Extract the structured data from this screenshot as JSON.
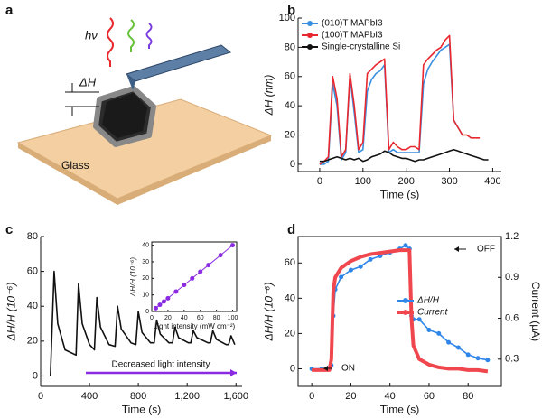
{
  "diagram": {
    "panel_label": "a",
    "labels": [
      "hν",
      "ΔH",
      "Glass"
    ]
  },
  "chart_data": [
    {
      "type": "line",
      "panel_label": "b",
      "xlabel": "Time (s)",
      "ylabel": "ΔH (nm)",
      "x": [
        0,
        10,
        20,
        30,
        40,
        50,
        60,
        70,
        80,
        90,
        100,
        110,
        120,
        130,
        140,
        150,
        160,
        170,
        180,
        190,
        200,
        210,
        220,
        230,
        240,
        250,
        260,
        270,
        280,
        290,
        300,
        310,
        320,
        330,
        340,
        350,
        360,
        370,
        380,
        390
      ],
      "series": [
        {
          "name": "(010)T MAPbI3",
          "color": "#3a8fe0",
          "values": [
            0,
            0,
            2,
            55,
            40,
            3,
            8,
            60,
            35,
            8,
            10,
            50,
            58,
            62,
            64,
            68,
            8,
            10,
            8,
            8,
            8,
            8,
            8,
            8,
            55,
            65,
            70,
            74,
            78,
            80,
            82,
            30,
            25,
            20,
            null,
            null,
            null,
            null,
            null,
            null
          ]
        },
        {
          "name": "(100)T MAPbI3",
          "color": "#e8282e",
          "values": [
            0,
            2,
            5,
            60,
            45,
            5,
            10,
            62,
            40,
            10,
            15,
            62,
            65,
            68,
            70,
            72,
            10,
            15,
            12,
            10,
            10,
            12,
            12,
            10,
            68,
            72,
            75,
            78,
            80,
            85,
            88,
            30,
            25,
            20,
            20,
            18,
            18,
            18,
            null,
            null
          ]
        },
        {
          "name": "Single-crystalline Si",
          "color": "#111111",
          "values": [
            2,
            2,
            3,
            4,
            5,
            4,
            3,
            4,
            3,
            4,
            2,
            3,
            5,
            6,
            7,
            9,
            8,
            6,
            5,
            4,
            4,
            3,
            2,
            3,
            3,
            4,
            5,
            6,
            7,
            8,
            9,
            10,
            9,
            8,
            7,
            6,
            5,
            4,
            3,
            3
          ]
        }
      ],
      "xlim": [
        -50,
        420
      ],
      "ylim": [
        -5,
        100
      ],
      "xticks": [
        0,
        100,
        200,
        300,
        400
      ],
      "yticks": [
        0,
        20,
        40,
        60,
        80,
        100
      ],
      "legend": "upper left",
      "grid": false
    },
    {
      "type": "line",
      "panel_label": "c",
      "xlabel": "Time (s)",
      "ylabel": "ΔH/H (10⁻⁶)",
      "x": [
        80,
        110,
        140,
        200,
        290,
        310,
        340,
        400,
        440,
        460,
        490,
        560,
        610,
        630,
        660,
        740,
        780,
        800,
        830,
        900,
        930,
        950,
        980,
        1050,
        1080,
        1100,
        1130,
        1210,
        1230,
        1250,
        1280,
        1370,
        1390,
        1410,
        1440,
        1520,
        1540,
        1560,
        1590
      ],
      "series": [
        {
          "name": null,
          "color": "#111111",
          "values": [
            0,
            60,
            30,
            15,
            12,
            53,
            30,
            18,
            15,
            45,
            28,
            18,
            17,
            40,
            27,
            19,
            18,
            37,
            25,
            19,
            19,
            32,
            24,
            19,
            19,
            28,
            22,
            19,
            19,
            26,
            22,
            19,
            19,
            26,
            21,
            18,
            18,
            23,
            18
          ]
        }
      ],
      "xlim": [
        0,
        1650
      ],
      "ylim": [
        -6,
        80
      ],
      "xticks": [
        0,
        400,
        800,
        {
          "value": 1200,
          "label": "1,200"
        },
        {
          "value": 1600,
          "label": "1,600"
        }
      ],
      "yticks": [
        0,
        20,
        40,
        60,
        80
      ],
      "annotations": [
        "Decreased light intensity"
      ],
      "grid": false
    },
    {
      "type": "line",
      "xlabel": "Light intensity (mW cm⁻²)",
      "ylabel": "ΔH/H (10⁻⁶)",
      "x": [
        5,
        10,
        15,
        20,
        30,
        40,
        50,
        60,
        70,
        85,
        100
      ],
      "series": [
        {
          "name": null,
          "color": "#8a2be2",
          "marker": true,
          "values": [
            2,
            4,
            6,
            8,
            12,
            16,
            20,
            24,
            28,
            34,
            40
          ]
        }
      ],
      "xlim": [
        0,
        105
      ],
      "ylim": [
        0,
        42
      ],
      "xticks": [
        0,
        20,
        40,
        60,
        80,
        100
      ],
      "yticks": [
        0,
        10,
        20,
        30,
        40
      ],
      "box": true,
      "grid": false
    },
    {
      "type": "line",
      "panel_label": "d",
      "xlabel": "Time (s)",
      "ylabel": "ΔH/H (10⁻⁶)",
      "y2label": "Current (μA)",
      "x": [
        0,
        5,
        9,
        10,
        11,
        12,
        15,
        20,
        25,
        30,
        35,
        40,
        45,
        48,
        50,
        51,
        52,
        55,
        60,
        65,
        70,
        75,
        80,
        85,
        90
      ],
      "series": [
        {
          "name": "ΔH/H",
          "color": "#2f86e8",
          "marker": true,
          "values": [
            0,
            0,
            0,
            2,
            30,
            45,
            52,
            56,
            58,
            62,
            64,
            66,
            68,
            70,
            68,
            30,
            28,
            28,
            22,
            20,
            15,
            12,
            8,
            6,
            5
          ]
        },
        {
          "name": "Current",
          "color": "#f0474e",
          "axis": "y2",
          "values": [
            0.22,
            0.22,
            0.22,
            0.3,
            0.8,
            0.9,
            0.97,
            1.02,
            1.05,
            1.07,
            1.08,
            1.09,
            1.1,
            1.1,
            1.1,
            0.6,
            0.4,
            0.3,
            0.26,
            0.24,
            0.23,
            0.23,
            0.22,
            0.22,
            0.21
          ]
        }
      ],
      "xlim": [
        -7,
        97
      ],
      "ylim": [
        -10,
        75
      ],
      "xticks": [
        0,
        20,
        40,
        60,
        80
      ],
      "yticks": [
        0,
        20,
        40,
        60
      ],
      "y2lim": [
        0.1,
        1.2
      ],
      "y2ticks": [
        0.3,
        0.6,
        0.9,
        1.2
      ],
      "legend": "center right",
      "annotations": [
        "ON",
        "OFF"
      ],
      "box": true,
      "grid": false
    }
  ]
}
